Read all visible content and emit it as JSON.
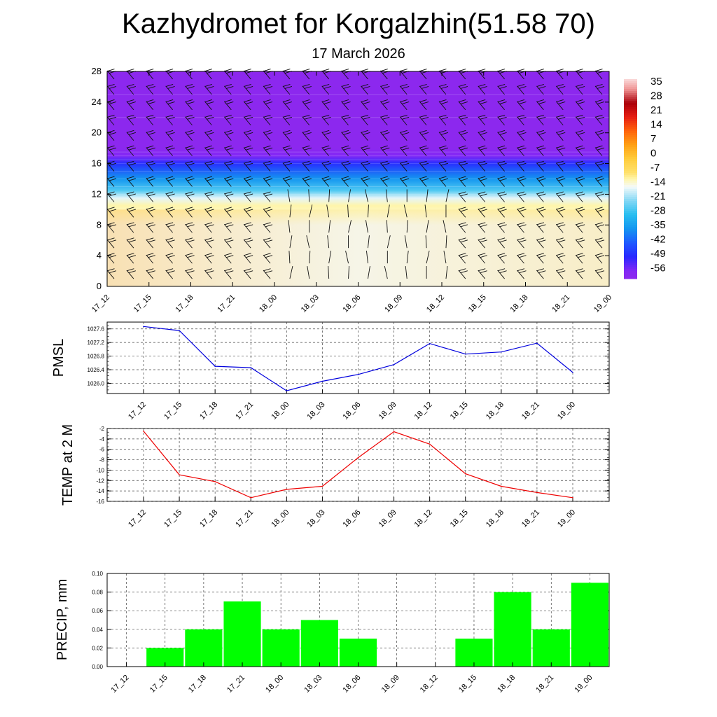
{
  "title": "Kazhydromet for Korgalzhin(51.58 70)",
  "subtitle": "17 March 2026",
  "chart_data": [
    {
      "type": "heatmap",
      "name": "temperature-wind-cross-section",
      "x": [
        "17_12",
        "17_15",
        "17_18",
        "17_21",
        "18_00",
        "18_03",
        "18_06",
        "18_09",
        "18_12",
        "18_15",
        "18_18",
        "18_21",
        "19_00"
      ],
      "ylim": [
        0,
        28
      ],
      "yticks": [
        0,
        4,
        8,
        12,
        16,
        20,
        24,
        28
      ],
      "colorbar": {
        "labels": [
          "35",
          "28",
          "21",
          "14",
          "7",
          "0",
          "-7",
          "-14",
          "-21",
          "-28",
          "-35",
          "-42",
          "-49",
          "-56"
        ],
        "range": [
          -60,
          40
        ]
      },
      "layers": [
        {
          "level": 0,
          "value": -14
        },
        {
          "level": 4,
          "value": -14
        },
        {
          "level": 8,
          "value": -14
        },
        {
          "level": 10.5,
          "value": -10
        },
        {
          "level": 11.5,
          "value": -15
        },
        {
          "level": 12.5,
          "value": -25
        },
        {
          "level": 14,
          "value": -35
        },
        {
          "level": 16,
          "value": -48
        },
        {
          "level": 17,
          "value": -56
        },
        {
          "level": 18,
          "value": -60
        },
        {
          "level": 28,
          "value": -60
        }
      ],
      "colors": {
        "warm": "#FFC83C",
        "cold": "#8C28EE"
      }
    },
    {
      "type": "line",
      "name": "pmsl",
      "ylabel": "PMSL",
      "x": [
        "17_12",
        "17_15",
        "17_18",
        "17_21",
        "18_00",
        "18_03",
        "18_06",
        "18_09",
        "18_12",
        "18_15",
        "18_18",
        "18_21",
        "19_00"
      ],
      "series": [
        {
          "values": [
            1027.67,
            1027.55,
            1026.5,
            1026.46,
            1025.78,
            1026.06,
            1026.26,
            1026.55,
            1027.17,
            1026.86,
            1026.92,
            1027.18,
            1026.32
          ]
        }
      ],
      "ylim": [
        1025.7,
        1027.8
      ],
      "yticks": [
        "1026.0",
        "1026.4",
        "1026.8",
        "1027.2",
        "1027.6"
      ],
      "color": "#0000DD"
    },
    {
      "type": "line",
      "name": "temp-2m",
      "ylabel": "TEMP at 2 M",
      "x": [
        "17_12",
        "17_15",
        "17_18",
        "17_21",
        "18_00",
        "18_03",
        "18_06",
        "18_09",
        "18_12",
        "18_15",
        "18_18",
        "18_21",
        "19_00"
      ],
      "series": [
        {
          "values": [
            -2.5,
            -10.9,
            -12.2,
            -15.3,
            -13.7,
            -13.1,
            -7.6,
            -2.6,
            -5.0,
            -10.7,
            -13.1,
            -14.3,
            -15.3
          ]
        }
      ],
      "ylim": [
        -16,
        -2
      ],
      "yticks": [
        "-2",
        "-4",
        "-6",
        "-8",
        "-10",
        "-12",
        "-14",
        "-16"
      ],
      "color": "#EE0000"
    },
    {
      "type": "bar",
      "name": "precip",
      "ylabel": "PRECIP, mm",
      "categories": [
        "17_12",
        "17_15",
        "17_18",
        "17_21",
        "18_00",
        "18_03",
        "18_06",
        "18_09",
        "18_12",
        "18_15",
        "18_18",
        "18_21",
        "19_00"
      ],
      "values": [
        0,
        0.02,
        0.04,
        0.07,
        0.04,
        0.05,
        0.03,
        0,
        0,
        0.03,
        0.08,
        0.04,
        0.09
      ],
      "ylim": [
        0,
        0.1
      ],
      "yticks": [
        "0.00",
        "0.02",
        "0.04",
        "0.06",
        "0.08",
        "0.10"
      ],
      "color": "#00FF00"
    }
  ]
}
